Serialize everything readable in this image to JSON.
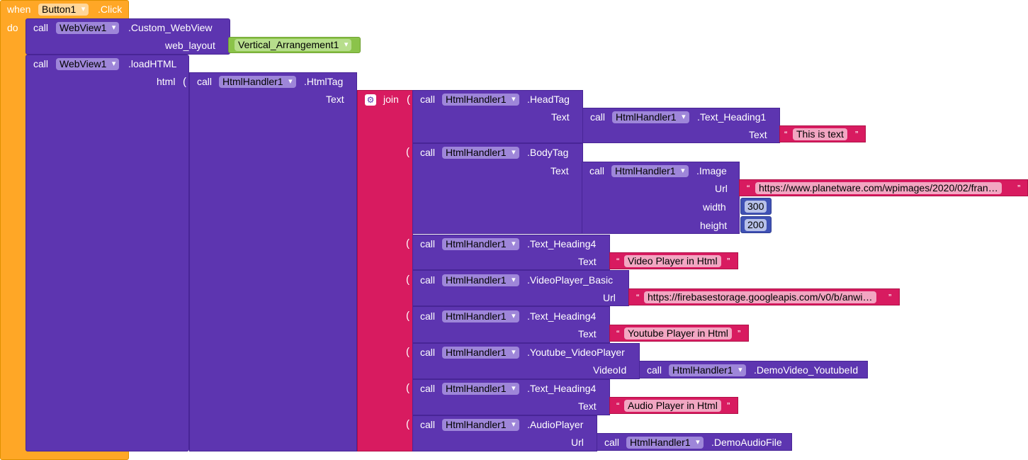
{
  "event": {
    "when": "when",
    "component": "Button1",
    "event_name": ".Click",
    "do": "do"
  },
  "call": "call",
  "open_quote": "“",
  "close_quote": "”",
  "custom_webview": {
    "component": "WebView1",
    "method": ".Custom_WebView",
    "param": "web_layout",
    "arg": "Vertical_Arrangement1"
  },
  "loadhtml": {
    "component": "WebView1",
    "method": ".loadHTML",
    "param": "html"
  },
  "htmltag": {
    "component": "HtmlHandler1",
    "method": ".HtmlTag",
    "param": "Text"
  },
  "join_label": "join",
  "headtag": {
    "component": "HtmlHandler1",
    "method": ".HeadTag",
    "param": "Text"
  },
  "heading1": {
    "component": "HtmlHandler1",
    "method": ".Text_Heading1",
    "param": "Text",
    "value": "This is text"
  },
  "bodytag": {
    "component": "HtmlHandler1",
    "method": ".BodyTag",
    "param": "Text"
  },
  "image": {
    "component": "HtmlHandler1",
    "method": ".Image",
    "url_label": "Url",
    "url": "https://www.planetware.com/wpimages/2020/02/fran…",
    "width_label": "width",
    "width": "300",
    "height_label": "height",
    "height": "200"
  },
  "heading4_video": {
    "component": "HtmlHandler1",
    "method": ".Text_Heading4",
    "param": "Text",
    "value": "Video Player in Html"
  },
  "videoplayer": {
    "component": "HtmlHandler1",
    "method": ".VideoPlayer_Basic",
    "param": "Url",
    "value": "https://firebasestorage.googleapis.com/v0/b/anwi…"
  },
  "heading4_youtube": {
    "component": "HtmlHandler1",
    "method": ".Text_Heading4",
    "param": "Text",
    "value": "Youtube Player in Html"
  },
  "youtube": {
    "component": "HtmlHandler1",
    "method": ".Youtube_VideoPlayer",
    "param": "VideoId",
    "inner_component": "HtmlHandler1",
    "inner_method": ".DemoVideo_YoutubeId"
  },
  "heading4_audio": {
    "component": "HtmlHandler1",
    "method": ".Text_Heading4",
    "param": "Text",
    "value": "Audio Player in Html"
  },
  "audioplayer": {
    "component": "HtmlHandler1",
    "method": ".AudioPlayer",
    "param": "Url",
    "inner_component": "HtmlHandler1",
    "inner_method": ".DemoAudioFile"
  }
}
